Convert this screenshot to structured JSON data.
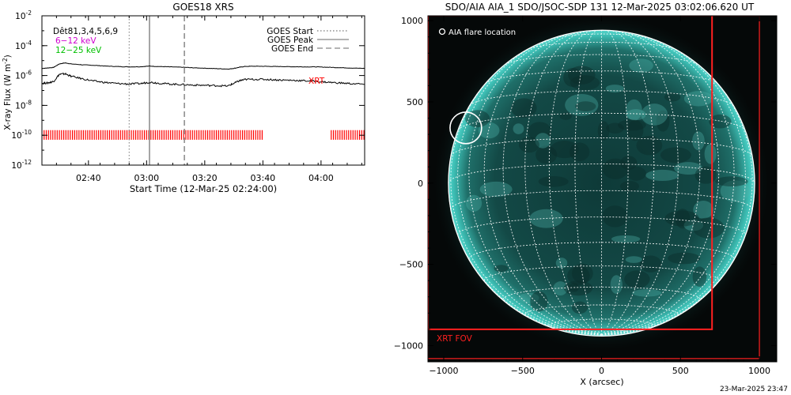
{
  "colors": {
    "background": "#ffffff",
    "axes": "#000000",
    "xrt": "#ff0000",
    "band_6_12": "#d000d0",
    "band_12_25": "#00c000",
    "sun_teal": "#2aa8a0",
    "grid": "#ffffff"
  },
  "chart_data": [
    {
      "type": "line",
      "title": "GOES18 XRS",
      "xlabel": "Start Time (12-Mar-25 02:24:00)",
      "ylabel": "X-ray Flux (W m^-2)",
      "ylabel_parts": {
        "main": "X-ray Flux (W m",
        "sup": "-2",
        "end": ")"
      },
      "yscale": "log",
      "ylim": [
        1e-12,
        0.01
      ],
      "xlim_minutes": [
        0,
        111
      ],
      "x_ticks": [
        {
          "label": "02:40",
          "minute": 16
        },
        {
          "label": "03:00",
          "minute": 36
        },
        {
          "label": "03:20",
          "minute": 56
        },
        {
          "label": "03:40",
          "minute": 76
        },
        {
          "label": "04:00",
          "minute": 96
        }
      ],
      "y_ticks": [
        {
          "base": "10",
          "exp": "-2",
          "value": 0.01
        },
        {
          "base": "10",
          "exp": "-4",
          "value": 0.0001
        },
        {
          "base": "10",
          "exp": "-6",
          "value": 1e-06
        },
        {
          "base": "10",
          "exp": "-8",
          "value": 1e-08
        },
        {
          "base": "10",
          "exp": "-10",
          "value": 1e-10
        },
        {
          "base": "10",
          "exp": "-12",
          "value": 1e-12
        }
      ],
      "legend": {
        "placement": "top-right",
        "entries": [
          {
            "label": "GOES Start",
            "style": "dotted"
          },
          {
            "label": "GOES Peak",
            "style": "solid"
          },
          {
            "label": "GOES End",
            "style": "dashed"
          }
        ]
      },
      "annotations": {
        "channels_label": "Dêt81,3,4,5,6,9",
        "band_low": "6−12 keV",
        "band_high": "12−25 keV",
        "xrt_label": "XRT"
      },
      "events_minutes": {
        "start": 30,
        "peak": 37,
        "end": 49
      },
      "series": [
        {
          "x": [
            0,
            2,
            4,
            6,
            8,
            10,
            14,
            18,
            22,
            26,
            30,
            34,
            37,
            40,
            44,
            48,
            52,
            56,
            60,
            64,
            66,
            68,
            70,
            74,
            78,
            82,
            86,
            90,
            94,
            98,
            102,
            106,
            111
          ],
          "y": [
            3e-06,
            3.2e-06,
            3.5e-06,
            6e-06,
            7e-06,
            6e-06,
            5.2e-06,
            4.8e-06,
            4.3e-06,
            4e-06,
            3.8e-06,
            3.9e-06,
            4.3e-06,
            4e-06,
            3.8e-06,
            3.6e-06,
            3.3e-06,
            3.1e-06,
            2.9e-06,
            2.7e-06,
            3e-06,
            3.6e-06,
            4.1e-06,
            4.2e-06,
            4.1e-06,
            4e-06,
            3.9e-06,
            3.8e-06,
            3.8e-06,
            3.6e-06,
            3.4e-06,
            3.2e-06,
            3e-06
          ]
        },
        {
          "x": [
            0,
            2,
            4,
            6,
            8,
            10,
            14,
            18,
            22,
            26,
            30,
            34,
            37,
            40,
            44,
            48,
            52,
            56,
            60,
            64,
            66,
            68,
            70,
            74,
            78,
            82,
            86,
            90,
            94,
            98,
            102,
            106,
            111
          ],
          "y": [
            3e-07,
            3.2e-07,
            4e-07,
            1.2e-06,
            1.3e-06,
            9e-07,
            6e-07,
            4.2e-07,
            3.4e-07,
            2.9e-07,
            2.7e-07,
            2.9e-07,
            3.6e-07,
            3.1e-07,
            2.7e-07,
            2.5e-07,
            2.3e-07,
            2.2e-07,
            2.1e-07,
            2e-07,
            3e-07,
            4.5e-07,
            5.5e-07,
            5.6e-07,
            5.4e-07,
            5e-07,
            4.8e-07,
            4.5e-07,
            4.1e-07,
            3.6e-07,
            3.2e-07,
            2.9e-07,
            2.6e-07
          ]
        }
      ],
      "xrt_coverage_minutes": [
        [
          0,
          76
        ],
        [
          99.5,
          111
        ]
      ]
    },
    {
      "type": "scatter",
      "title": "SDO/AIA AIA_1 SDO/JSOC-SDP 131 12-Mar-2025 03:02:06.620 UT",
      "xlabel": "X (arcsec)",
      "ylabel": "",
      "xlim": [
        -1100,
        1110
      ],
      "ylim": [
        -1100,
        1030
      ],
      "x_ticks": [
        -1000,
        -500,
        0,
        500,
        1000
      ],
      "y_ticks": [
        1000,
        500,
        0,
        -500,
        -1000
      ],
      "x_tick_labels": [
        "−1000",
        "−500",
        "0",
        "500",
        "1000"
      ],
      "y_tick_labels": [
        "1000",
        "500",
        "0",
        "−500",
        "−1000"
      ],
      "solar_radius_arcsec": 970,
      "flare_location": {
        "x": -860,
        "y": 340,
        "radius": 100,
        "label": "AIA flare location"
      },
      "fov_boxes": [
        {
          "x0": -1100,
          "y0": -1080,
          "x1": 1000,
          "y1": 1030
        },
        {
          "x0": -1100,
          "y0": -900,
          "x1": 700,
          "y1": 1115
        }
      ],
      "fov_label": "XRT FOV",
      "timestamp": "23-Mar-2025 23:47"
    }
  ]
}
